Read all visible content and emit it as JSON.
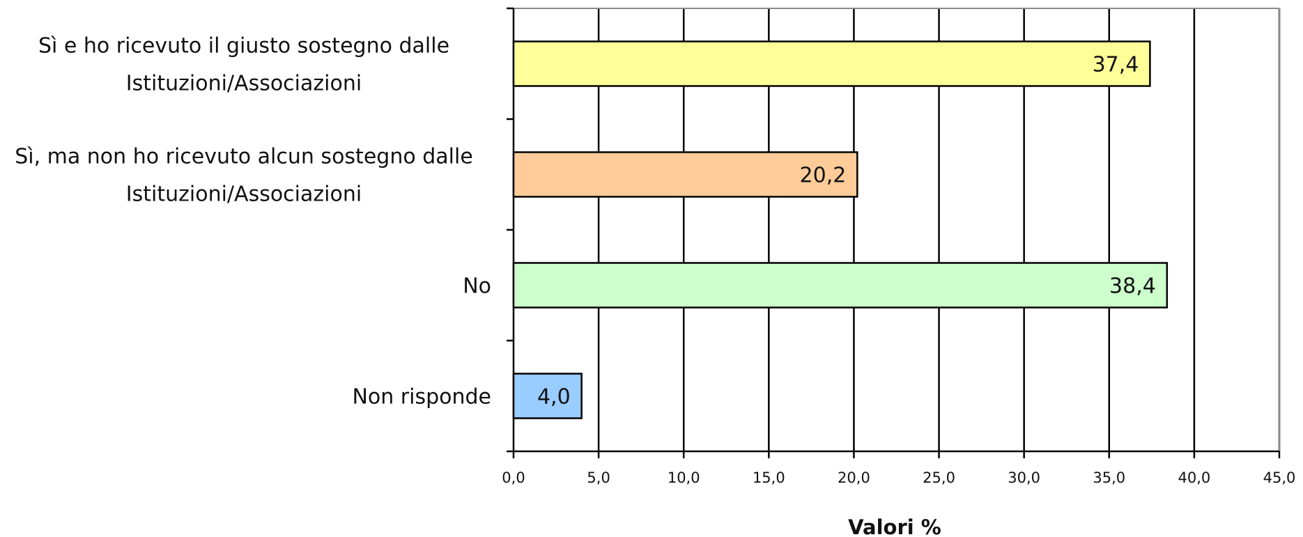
{
  "chart_data": {
    "type": "bar",
    "orientation": "horizontal",
    "categories": [
      [
        "Sì e ho ricevuto il giusto sostegno dalle",
        "Istituzioni/Associazioni"
      ],
      [
        "Sì, ma non ho ricevuto alcun sostegno dalle",
        "Istituzioni/Associazioni"
      ],
      [
        "No"
      ],
      [
        "Non risponde"
      ]
    ],
    "values": [
      37.4,
      20.2,
      38.4,
      4.0
    ],
    "value_labels": [
      "37,4",
      "20,2",
      "38,4",
      "4,0"
    ],
    "colors": [
      "#ffff99",
      "#ffcc99",
      "#ccffcc",
      "#99ccff"
    ],
    "xlabel": "Valori %",
    "xlim": [
      0,
      45
    ],
    "xticks": [
      0,
      5,
      10,
      15,
      20,
      25,
      30,
      35,
      40,
      45
    ],
    "xtick_labels": [
      "0,0",
      "5,0",
      "10,0",
      "15,0",
      "20,0",
      "25,0",
      "30,0",
      "35,0",
      "40,0",
      "45,0"
    ],
    "grid": "vertical"
  }
}
